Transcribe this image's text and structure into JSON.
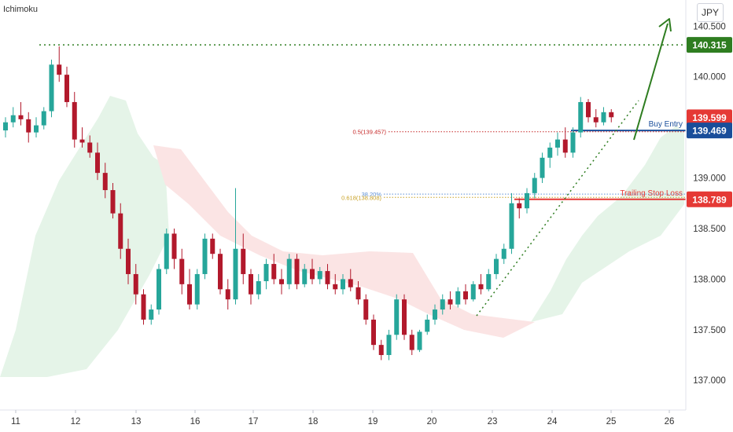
{
  "indicator": "Ichimoku",
  "currency": "JPY",
  "colors": {
    "bull_candle": "#26a69a",
    "bear_candle": "#b2192c",
    "cloud_bull": "#e5f4e8",
    "cloud_bear": "#fbe4e4",
    "target_line": "#2e7d20",
    "stop_line": "#e53935",
    "entry_line": "#1a4e9a"
  },
  "chart_data": {
    "type": "candlestick",
    "x_tick_labels": [
      "11",
      "12",
      "13",
      "16",
      "17",
      "18",
      "19",
      "20",
      "23",
      "24",
      "25",
      "26"
    ],
    "y_ticks": [
      "137.000",
      "137.500",
      "138.000",
      "138.500",
      "139.000",
      "140.000",
      "140.500"
    ],
    "ylim": [
      136.8,
      140.65
    ],
    "price_levels": [
      {
        "id": "target",
        "label": "140.315",
        "value": 140.315,
        "style": "dotted",
        "color": "#2e7d20"
      },
      {
        "id": "resistance",
        "label": "139.599",
        "value": 139.599,
        "style": "none",
        "color": "#e53935"
      },
      {
        "id": "entry",
        "label": "139.469",
        "value": 139.469,
        "style": "solid",
        "color": "#1a4e9a",
        "annotation": "Buy Entry"
      },
      {
        "id": "stop",
        "label": "138.789",
        "value": 138.789,
        "style": "solid",
        "color": "#e53935",
        "annotation": "Trailing Stop Loss"
      }
    ],
    "fib_levels": [
      {
        "label": "0.5(139.457)",
        "value": 139.457,
        "color": "#c62828"
      },
      {
        "label": "38.20%",
        "value": 138.84,
        "color": "#5b8fd6"
      },
      {
        "label": "0.618(138.808)",
        "value": 138.808,
        "color": "#c9a227"
      }
    ],
    "candles": [
      {
        "o": 139.47,
        "h": 139.6,
        "l": 139.4,
        "c": 139.55
      },
      {
        "o": 139.55,
        "h": 139.7,
        "l": 139.5,
        "c": 139.62
      },
      {
        "o": 139.62,
        "h": 139.75,
        "l": 139.52,
        "c": 139.58
      },
      {
        "o": 139.58,
        "h": 139.65,
        "l": 139.35,
        "c": 139.45
      },
      {
        "o": 139.45,
        "h": 139.6,
        "l": 139.4,
        "c": 139.52
      },
      {
        "o": 139.52,
        "h": 139.7,
        "l": 139.48,
        "c": 139.66
      },
      {
        "o": 139.66,
        "h": 140.17,
        "l": 139.6,
        "c": 140.12
      },
      {
        "o": 140.12,
        "h": 140.3,
        "l": 139.95,
        "c": 140.02
      },
      {
        "o": 140.02,
        "h": 140.1,
        "l": 139.7,
        "c": 139.75
      },
      {
        "o": 139.75,
        "h": 139.85,
        "l": 139.3,
        "c": 139.38
      },
      {
        "o": 139.38,
        "h": 139.5,
        "l": 139.3,
        "c": 139.35
      },
      {
        "o": 139.35,
        "h": 139.42,
        "l": 139.2,
        "c": 139.25
      },
      {
        "o": 139.25,
        "h": 139.35,
        "l": 138.98,
        "c": 139.05
      },
      {
        "o": 139.05,
        "h": 139.15,
        "l": 138.8,
        "c": 138.88
      },
      {
        "o": 138.88,
        "h": 138.95,
        "l": 138.6,
        "c": 138.65
      },
      {
        "o": 138.65,
        "h": 138.75,
        "l": 138.2,
        "c": 138.3
      },
      {
        "o": 138.3,
        "h": 138.4,
        "l": 137.95,
        "c": 138.05
      },
      {
        "o": 138.05,
        "h": 138.15,
        "l": 137.75,
        "c": 137.85
      },
      {
        "o": 137.85,
        "h": 137.9,
        "l": 137.55,
        "c": 137.6
      },
      {
        "o": 137.6,
        "h": 137.75,
        "l": 137.55,
        "c": 137.7
      },
      {
        "o": 137.7,
        "h": 138.15,
        "l": 137.65,
        "c": 138.1
      },
      {
        "o": 138.1,
        "h": 138.5,
        "l": 138.05,
        "c": 138.45
      },
      {
        "o": 138.45,
        "h": 138.5,
        "l": 138.1,
        "c": 138.2
      },
      {
        "o": 138.2,
        "h": 138.3,
        "l": 137.85,
        "c": 137.95
      },
      {
        "o": 137.95,
        "h": 138.1,
        "l": 137.7,
        "c": 137.75
      },
      {
        "o": 137.75,
        "h": 138.1,
        "l": 137.7,
        "c": 138.05
      },
      {
        "o": 138.05,
        "h": 138.45,
        "l": 138.0,
        "c": 138.4
      },
      {
        "o": 138.4,
        "h": 138.45,
        "l": 138.2,
        "c": 138.25
      },
      {
        "o": 138.25,
        "h": 138.3,
        "l": 137.85,
        "c": 137.9
      },
      {
        "o": 137.9,
        "h": 138.0,
        "l": 137.7,
        "c": 137.8
      },
      {
        "o": 137.8,
        "h": 138.9,
        "l": 137.75,
        "c": 138.3
      },
      {
        "o": 138.3,
        "h": 138.45,
        "l": 137.95,
        "c": 138.05
      },
      {
        "o": 138.05,
        "h": 138.1,
        "l": 137.75,
        "c": 137.85
      },
      {
        "o": 137.85,
        "h": 138.05,
        "l": 137.8,
        "c": 137.98
      },
      {
        "o": 137.98,
        "h": 138.2,
        "l": 137.9,
        "c": 138.15
      },
      {
        "o": 138.15,
        "h": 138.25,
        "l": 137.95,
        "c": 138.0
      },
      {
        "o": 138.0,
        "h": 138.1,
        "l": 137.85,
        "c": 137.95
      },
      {
        "o": 137.95,
        "h": 138.25,
        "l": 137.9,
        "c": 138.2
      },
      {
        "o": 138.2,
        "h": 138.25,
        "l": 137.9,
        "c": 137.95
      },
      {
        "o": 137.95,
        "h": 138.15,
        "l": 137.92,
        "c": 138.1
      },
      {
        "o": 138.1,
        "h": 138.2,
        "l": 137.95,
        "c": 138.0
      },
      {
        "o": 138.0,
        "h": 138.12,
        "l": 137.95,
        "c": 138.08
      },
      {
        "o": 138.08,
        "h": 138.15,
        "l": 137.9,
        "c": 137.95
      },
      {
        "o": 137.95,
        "h": 138.05,
        "l": 137.85,
        "c": 137.9
      },
      {
        "o": 137.9,
        "h": 138.05,
        "l": 137.85,
        "c": 138.0
      },
      {
        "o": 138.0,
        "h": 138.1,
        "l": 137.88,
        "c": 137.92
      },
      {
        "o": 137.92,
        "h": 137.98,
        "l": 137.75,
        "c": 137.8
      },
      {
        "o": 137.8,
        "h": 137.85,
        "l": 137.55,
        "c": 137.6
      },
      {
        "o": 137.6,
        "h": 137.65,
        "l": 137.3,
        "c": 137.35
      },
      {
        "o": 137.35,
        "h": 137.4,
        "l": 137.2,
        "c": 137.25
      },
      {
        "o": 137.25,
        "h": 137.5,
        "l": 137.2,
        "c": 137.45
      },
      {
        "o": 137.45,
        "h": 137.85,
        "l": 137.4,
        "c": 137.8
      },
      {
        "o": 137.8,
        "h": 137.85,
        "l": 137.4,
        "c": 137.45
      },
      {
        "o": 137.45,
        "h": 137.5,
        "l": 137.25,
        "c": 137.3
      },
      {
        "o": 137.3,
        "h": 137.5,
        "l": 137.28,
        "c": 137.48
      },
      {
        "o": 137.48,
        "h": 137.65,
        "l": 137.45,
        "c": 137.6
      },
      {
        "o": 137.6,
        "h": 137.75,
        "l": 137.55,
        "c": 137.7
      },
      {
        "o": 137.7,
        "h": 137.85,
        "l": 137.65,
        "c": 137.8
      },
      {
        "o": 137.8,
        "h": 137.88,
        "l": 137.7,
        "c": 137.75
      },
      {
        "o": 137.75,
        "h": 137.92,
        "l": 137.72,
        "c": 137.88
      },
      {
        "o": 137.88,
        "h": 137.95,
        "l": 137.75,
        "c": 137.8
      },
      {
        "o": 137.8,
        "h": 137.98,
        "l": 137.78,
        "c": 137.95
      },
      {
        "o": 137.95,
        "h": 138.05,
        "l": 137.85,
        "c": 137.9
      },
      {
        "o": 137.9,
        "h": 138.1,
        "l": 137.88,
        "c": 138.05
      },
      {
        "o": 138.05,
        "h": 138.25,
        "l": 138.0,
        "c": 138.2
      },
      {
        "o": 138.2,
        "h": 138.35,
        "l": 138.15,
        "c": 138.3
      },
      {
        "o": 138.3,
        "h": 138.85,
        "l": 138.25,
        "c": 138.75
      },
      {
        "o": 138.75,
        "h": 138.8,
        "l": 138.6,
        "c": 138.7
      },
      {
        "o": 138.7,
        "h": 138.9,
        "l": 138.65,
        "c": 138.85
      },
      {
        "o": 138.85,
        "h": 139.05,
        "l": 138.8,
        "c": 139.0
      },
      {
        "o": 139.0,
        "h": 139.25,
        "l": 138.95,
        "c": 139.2
      },
      {
        "o": 139.2,
        "h": 139.35,
        "l": 139.1,
        "c": 139.3
      },
      {
        "o": 139.3,
        "h": 139.45,
        "l": 139.22,
        "c": 139.38
      },
      {
        "o": 139.38,
        "h": 139.5,
        "l": 139.2,
        "c": 139.25
      },
      {
        "o": 139.25,
        "h": 139.5,
        "l": 139.2,
        "c": 139.45
      },
      {
        "o": 139.45,
        "h": 139.8,
        "l": 139.4,
        "c": 139.75
      },
      {
        "o": 139.75,
        "h": 139.78,
        "l": 139.55,
        "c": 139.6
      },
      {
        "o": 139.6,
        "h": 139.68,
        "l": 139.5,
        "c": 139.55
      },
      {
        "o": 139.55,
        "h": 139.7,
        "l": 139.52,
        "c": 139.65
      },
      {
        "o": 139.65,
        "h": 139.68,
        "l": 139.55,
        "c": 139.6
      }
    ],
    "projection_arrow_target": 140.65
  }
}
